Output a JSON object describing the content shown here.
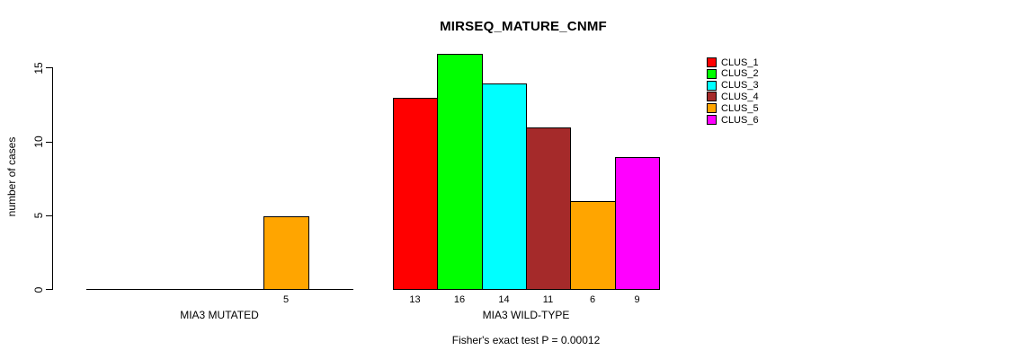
{
  "chart_data": {
    "type": "bar",
    "title": "MIRSEQ_MATURE_CNMF",
    "ylabel": "number of cases",
    "xlabel": "",
    "ylim": [
      0,
      16
    ],
    "yticks": [
      0,
      5,
      10,
      15
    ],
    "grid": false,
    "legend_position": "right",
    "categories": [
      "CLUS_1",
      "CLUS_2",
      "CLUS_3",
      "CLUS_4",
      "CLUS_5",
      "CLUS_6"
    ],
    "colors": [
      "#FF0000",
      "#00FF00",
      "#00FFFF",
      "#A52A2A",
      "#FFA500",
      "#FF00FF"
    ],
    "groups": [
      {
        "label": "MIA3 MUTATED",
        "values": [
          0,
          0,
          0,
          0,
          5,
          0
        ]
      },
      {
        "label": "MIA3 WILD-TYPE",
        "values": [
          13,
          16,
          14,
          11,
          6,
          9
        ]
      }
    ],
    "bar_value_labels_shown": [
      "5",
      "13",
      "16",
      "14",
      "11",
      "6",
      "9"
    ],
    "legend": [
      {
        "label": "CLUS_1",
        "color": "#FF0000"
      },
      {
        "label": "CLUS_2",
        "color": "#00FF00"
      },
      {
        "label": "CLUS_3",
        "color": "#00FFFF"
      },
      {
        "label": "CLUS_4",
        "color": "#A52A2A"
      },
      {
        "label": "CLUS_5",
        "color": "#FFA500"
      },
      {
        "label": "CLUS_6",
        "color": "#FF00FF"
      }
    ],
    "annotation": "Fisher's exact test P = 0.00012"
  }
}
